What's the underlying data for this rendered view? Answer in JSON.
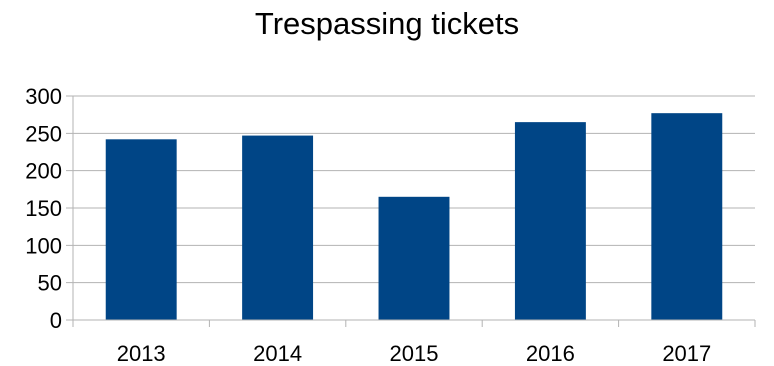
{
  "chart_data": {
    "type": "bar",
    "title": "Trespassing tickets",
    "categories": [
      "2013",
      "2014",
      "2015",
      "2016",
      "2017"
    ],
    "values": [
      242,
      247,
      165,
      265,
      277
    ],
    "ylim": [
      0,
      300
    ],
    "yticks": [
      0,
      50,
      100,
      150,
      200,
      250,
      300
    ],
    "grid": true,
    "legend": "none",
    "colors": {
      "bar": "#004586",
      "grid": "#b3b3b3",
      "axis": "#b3b3b3"
    }
  }
}
